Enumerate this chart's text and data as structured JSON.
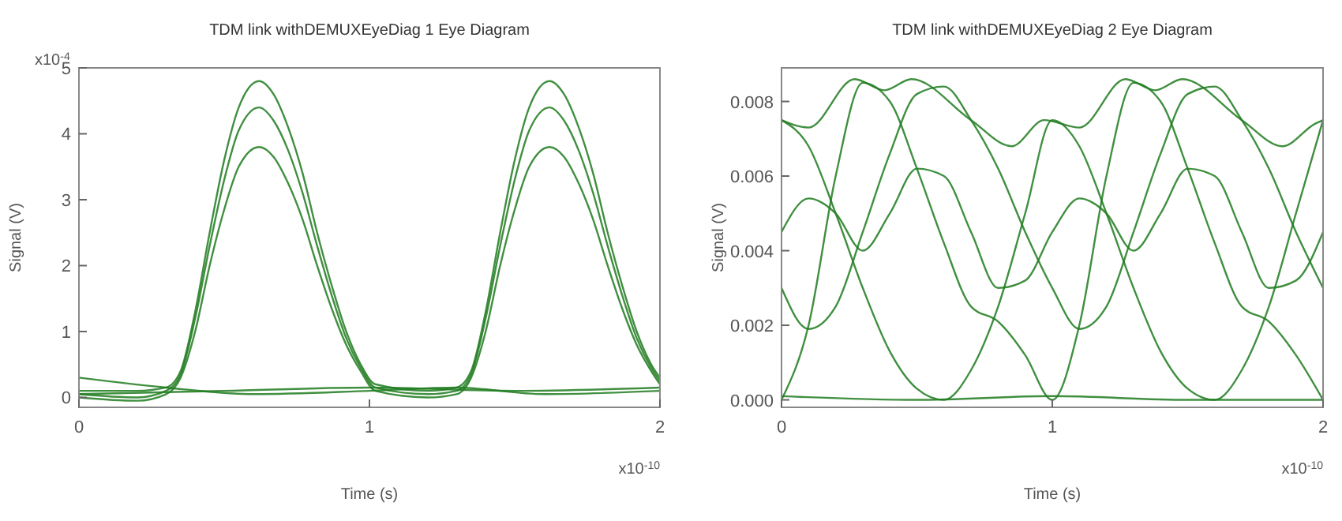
{
  "chart_data": [
    {
      "type": "line",
      "title": "TDM link withDEMUXEyeDiag 1 Eye Diagram",
      "xlabel": "Time (s)",
      "ylabel": "Signal (V)",
      "annotations": [
        "x10$^{-4}$",
        "x10$^{-10}$"
      ],
      "xlim": [
        0,
        2
      ],
      "xticks": [
        0,
        1,
        2
      ],
      "ylim": [
        -0.15,
        5
      ],
      "yticks": [
        0,
        1,
        2,
        3,
        4,
        5
      ],
      "grid": false,
      "x": [
        0,
        0.2,
        0.3,
        0.35,
        0.4,
        0.45,
        0.5,
        0.55,
        0.62,
        0.67,
        0.72,
        0.77,
        0.82,
        0.87,
        0.92,
        0.97,
        1.02,
        1.2,
        1.3,
        1.35,
        1.4,
        1.45,
        1.5,
        1.55,
        1.62,
        1.67,
        1.72,
        1.77,
        1.82,
        1.87,
        1.92,
        1.97,
        2
      ],
      "series": [
        {
          "color": "#1e7b1e",
          "values": [
            0.1,
            0.1,
            0.15,
            0.4,
            1.3,
            2.5,
            3.6,
            4.4,
            4.8,
            4.6,
            4.1,
            3.4,
            2.5,
            1.7,
            1,
            0.5,
            0.2,
            0.1,
            0.15,
            0.4,
            1.3,
            2.5,
            3.6,
            4.4,
            4.8,
            4.6,
            4.1,
            3.4,
            2.5,
            1.7,
            1,
            0.5,
            0.3
          ]
        },
        {
          "color": "#1e7b1e",
          "values": [
            0.05,
            0,
            0.1,
            0.35,
            1.2,
            2.3,
            3.3,
            4.05,
            4.4,
            4.2,
            3.75,
            3.1,
            2.3,
            1.55,
            0.9,
            0.45,
            0.15,
            0.05,
            0.1,
            0.35,
            1.2,
            2.3,
            3.3,
            4.05,
            4.4,
            4.2,
            3.75,
            3.1,
            2.3,
            1.55,
            0.9,
            0.45,
            0.25
          ]
        },
        {
          "color": "#1e7b1e",
          "values": [
            0,
            -0.05,
            0.05,
            0.3,
            1,
            2,
            2.85,
            3.5,
            3.8,
            3.65,
            3.25,
            2.7,
            2,
            1.35,
            0.8,
            0.4,
            0.1,
            0,
            0.05,
            0.3,
            1,
            2,
            2.85,
            3.5,
            3.8,
            3.65,
            3.25,
            2.7,
            2,
            1.35,
            0.8,
            0.4,
            0.2
          ]
        },
        {
          "color": "#1e7b1e",
          "x": [
            0,
            0.3,
            0.6,
            1,
            1.3,
            1.6,
            2
          ],
          "values": [
            0.3,
            0.15,
            0.05,
            0.1,
            0.15,
            0.05,
            0.1
          ]
        },
        {
          "color": "#1e7b1e",
          "x": [
            0,
            0.5,
            1,
            1.5,
            2
          ],
          "values": [
            0.05,
            0.1,
            0.15,
            0.1,
            0.15
          ]
        }
      ]
    },
    {
      "type": "line",
      "title": "TDM link withDEMUXEyeDiag 2 Eye Diagram",
      "xlabel": "Time (s)",
      "ylabel": "Signal (V)",
      "annotations": [
        "x10$^{-10}$"
      ],
      "xlim": [
        0,
        2
      ],
      "xticks": [
        0,
        1,
        2
      ],
      "ylim": [
        -0.0002,
        0.0089
      ],
      "yticks": [
        {
          "value": 0,
          "label": "0.000"
        },
        {
          "value": 0.002,
          "label": "0.002"
        },
        {
          "value": 0.004,
          "label": "0.004"
        },
        {
          "value": 0.006,
          "label": "0.006"
        },
        {
          "value": 0.008,
          "label": "0.008"
        }
      ],
      "grid": false,
      "x": [
        0,
        0.1,
        0.2,
        0.3,
        0.4,
        0.5,
        0.6,
        0.7,
        0.8,
        0.9,
        1,
        1.1,
        1.2,
        1.3,
        1.4,
        1.5,
        1.6,
        1.7,
        1.8,
        1.9,
        2
      ],
      "series": [
        {
          "color": "#1e7b1e",
          "x": [
            0,
            0.1,
            0.27,
            0.38,
            0.48,
            0.7,
            0.85,
            0.97,
            1.1,
            1.27,
            1.38,
            1.48,
            1.7,
            1.85,
            1.97,
            2
          ],
          "values": [
            0.0075,
            0.0073,
            0.0086,
            0.0083,
            0.0086,
            0.0075,
            0.0068,
            0.0075,
            0.0073,
            0.0086,
            0.0083,
            0.0086,
            0.0075,
            0.0068,
            0.0074,
            0.0075
          ]
        },
        {
          "color": "#1e7b1e",
          "values": [
            0.0075,
            0.0068,
            0.005,
            0.003,
            0.0013,
            0.0003,
            0,
            0.0008,
            0.0025,
            0.005,
            0.0075,
            0.0068,
            0.005,
            0.003,
            0.0013,
            0.0003,
            0,
            0.0008,
            0.0025,
            0.005,
            0.0075
          ]
        },
        {
          "color": "#1e7b1e",
          "values": [
            0,
            0.002,
            0.006,
            0.0085,
            0.008,
            0.0062,
            0.0042,
            0.0025,
            0.0021,
            0.0012,
            0,
            0.002,
            0.006,
            0.0085,
            0.008,
            0.0062,
            0.0042,
            0.0025,
            0.0021,
            0.0012,
            0
          ]
        },
        {
          "color": "#1e7b1e",
          "values": [
            0.0045,
            0.0054,
            0.005,
            0.004,
            0.005,
            0.0062,
            0.006,
            0.0045,
            0.003,
            0.0032,
            0.0045,
            0.0054,
            0.005,
            0.004,
            0.005,
            0.0062,
            0.006,
            0.0045,
            0.003,
            0.0032,
            0.0045
          ]
        },
        {
          "color": "#1e7b1e",
          "values": [
            0.003,
            0.0019,
            0.0025,
            0.0045,
            0.0066,
            0.0082,
            0.0084,
            0.0075,
            0.0062,
            0.0045,
            0.003,
            0.0019,
            0.0025,
            0.0045,
            0.0066,
            0.0082,
            0.0084,
            0.0075,
            0.0062,
            0.0045,
            0.003
          ]
        },
        {
          "color": "#1e7b1e",
          "x": [
            0,
            0.5,
            1,
            1.5,
            2
          ],
          "values": [
            0.0001,
            0,
            0.0001,
            0,
            0
          ]
        }
      ]
    }
  ]
}
